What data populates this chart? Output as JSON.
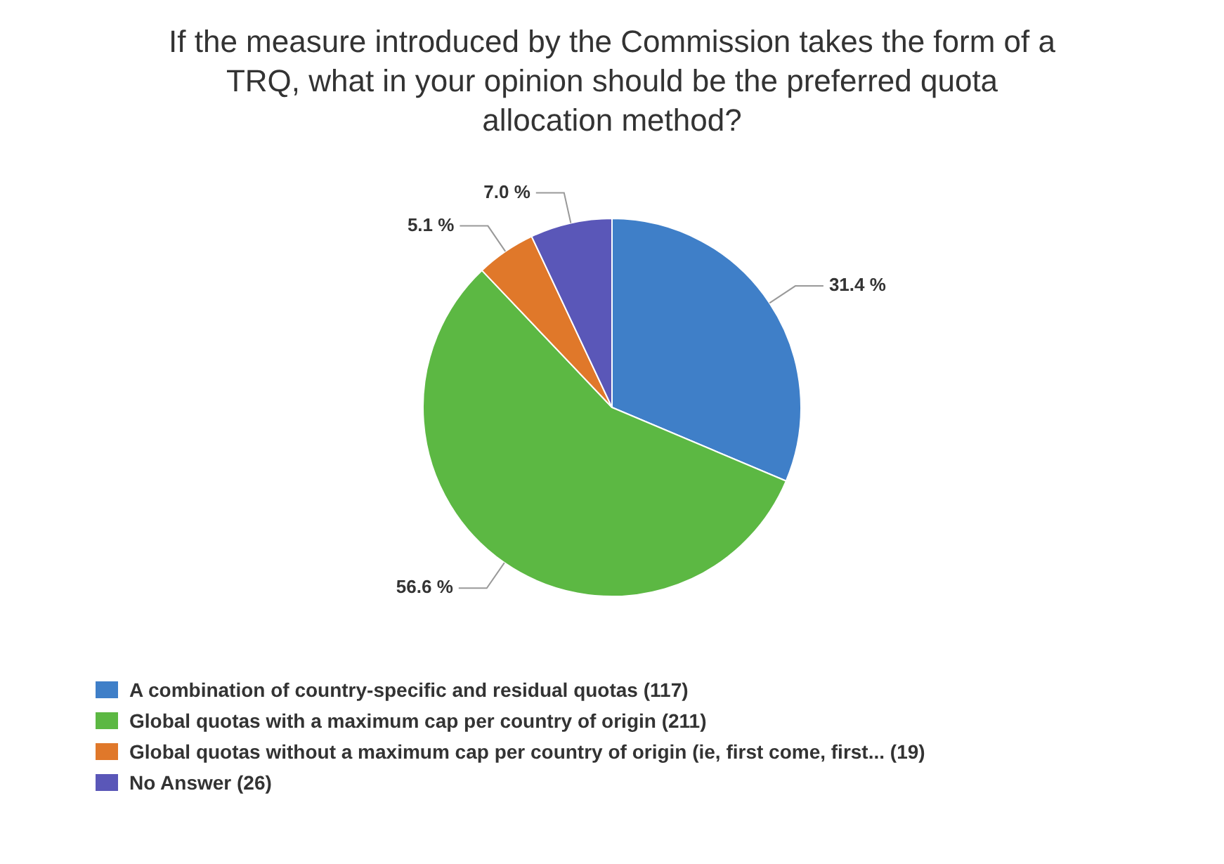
{
  "chart_data": {
    "type": "pie",
    "title": "If the measure introduced by the Commission takes the form of a TRQ, what in your opinion should be the preferred quota allocation method?",
    "categories": [
      "A combination of country-specific and residual quotas (117)",
      "Global quotas with a maximum cap per country of origin (211)",
      "Global quotas without a maximum cap per country of origin (ie, first come, first... (19)",
      "No Answer (26)"
    ],
    "values": [
      31.4,
      56.6,
      5.1,
      7.0
    ],
    "value_labels": [
      "31.4 %",
      "56.6 %",
      "5.1 %",
      "7.0 %"
    ],
    "colors": [
      "#3f7fc8",
      "#5cb843",
      "#e0782a",
      "#5a57b8"
    ],
    "legend": "bottom left"
  }
}
